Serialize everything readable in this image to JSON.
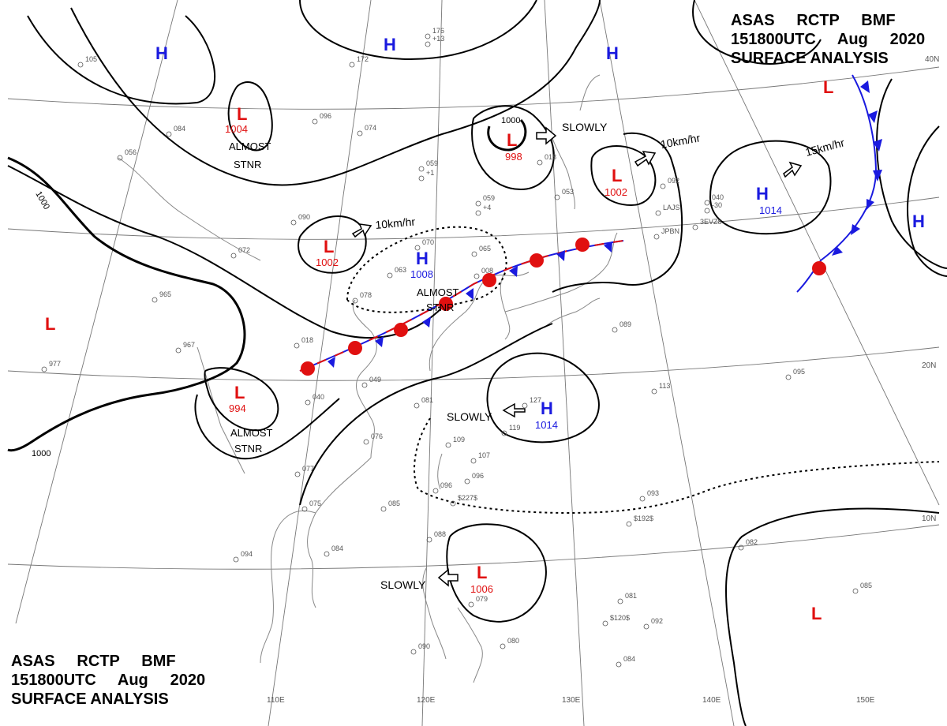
{
  "header": {
    "line1": [
      "ASAS",
      "RCTP",
      "BMF"
    ],
    "line2": [
      "151800UTC",
      "Aug",
      "2020"
    ],
    "line3": "SURFACE ANALYSIS"
  },
  "colors": {
    "high": "#1a1adf",
    "low": "#e01010",
    "isobar": "#000000",
    "grid": "#777777",
    "coast": "#888888"
  },
  "lat_labels": [
    "40N",
    "20N",
    "10N"
  ],
  "lon_labels": [
    "110E",
    "120E",
    "130E",
    "140E",
    "150E"
  ],
  "isobar_labels": [
    "1000",
    "1000",
    "1000"
  ],
  "pressure_centers": [
    {
      "type": "H",
      "value": ""
    },
    {
      "type": "H",
      "value": ""
    },
    {
      "type": "H",
      "value": ""
    },
    {
      "type": "L",
      "value": "1004"
    },
    {
      "type": "L",
      "value": "998"
    },
    {
      "type": "L",
      "value": "1002"
    },
    {
      "type": "H",
      "value": "1014"
    },
    {
      "type": "L",
      "value": ""
    },
    {
      "type": "L",
      "value": "1002"
    },
    {
      "type": "H",
      "value": "1008"
    },
    {
      "type": "H",
      "value": ""
    },
    {
      "type": "L",
      "value": ""
    },
    {
      "type": "L",
      "value": "994"
    },
    {
      "type": "H",
      "value": "1014"
    },
    {
      "type": "L",
      "value": "1006"
    },
    {
      "type": "L",
      "value": ""
    }
  ],
  "motion_labels": [
    "SLOWLY",
    "10km/hr",
    "15km/hr",
    "10km/hr",
    "SLOWLY",
    "SLOWLY"
  ],
  "remarks": [
    {
      "line1": "ALMOST",
      "line2": "STNR"
    },
    {
      "line1": "ALMOST",
      "line2": "STNR"
    },
    {
      "line1": "ALMOST",
      "line2": "STNR"
    }
  ],
  "station_labels": [
    "176",
    "+13",
    "172",
    "096",
    "074",
    "059",
    "+1",
    "059",
    "+4",
    "018",
    "053",
    "092",
    "040",
    "-30",
    "090",
    "072",
    "070",
    "065",
    "063",
    "008",
    "018",
    "078",
    "049",
    "040",
    "081",
    "076",
    "077",
    "075",
    "085",
    "084",
    "094",
    "088",
    "096",
    "109",
    "107",
    "096",
    "127",
    "119",
    "113",
    "095",
    "089",
    "093",
    "079",
    "081",
    "092",
    "084",
    "090",
    "080",
    "082",
    "085",
    "056",
    "105",
    "084",
    "977",
    "967",
    "965",
    "LAJS",
    "3EVZ8",
    "JPBN",
    "$192$",
    "$120$",
    "$227$"
  ]
}
